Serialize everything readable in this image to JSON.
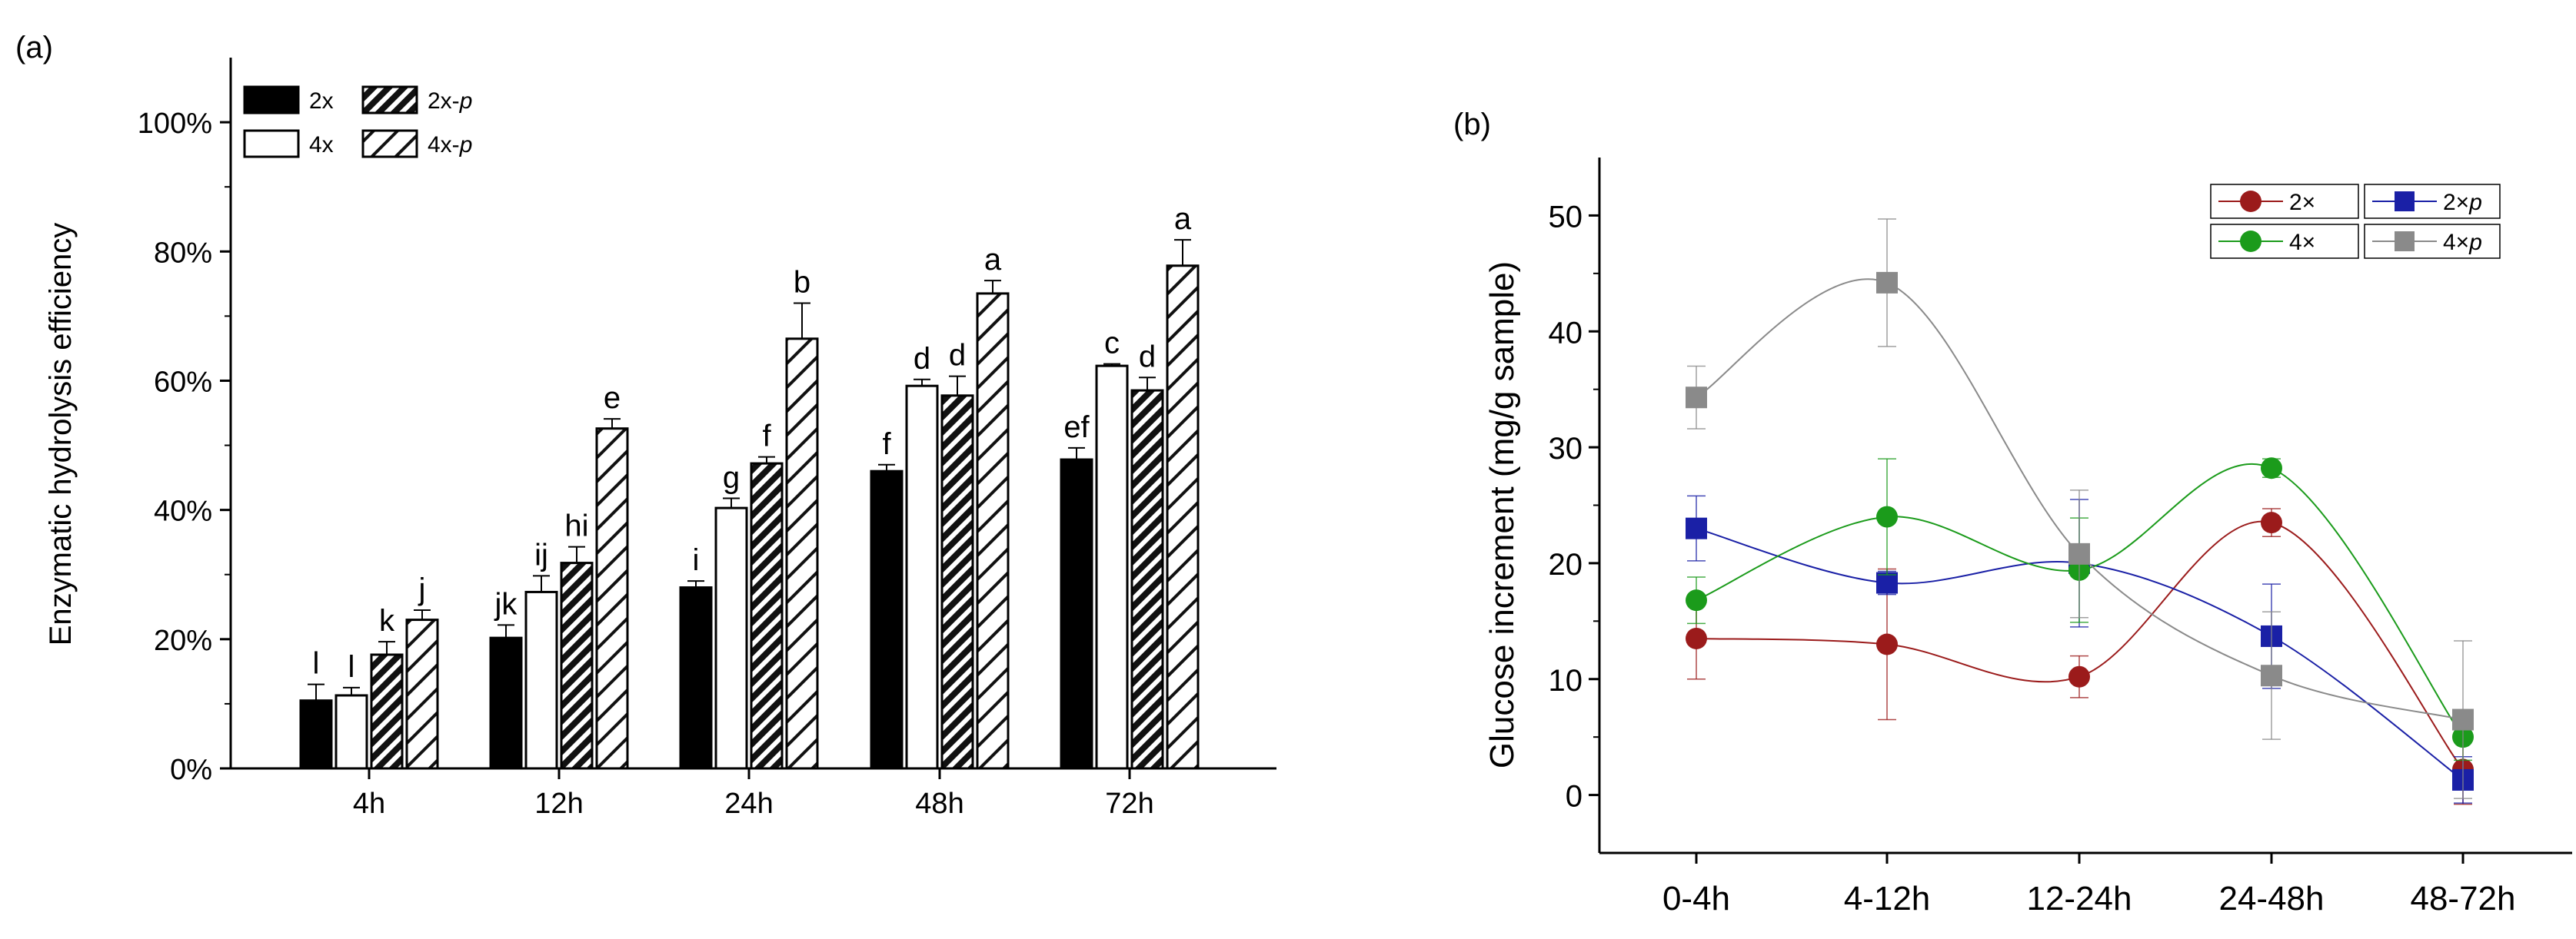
{
  "chart_data": [
    {
      "panel_label": "(a)",
      "type": "bar",
      "title": "",
      "xlabel": "",
      "ylabel": "Enzymatic hydrolysis efficiency",
      "ylim": [
        0,
        110
      ],
      "ytick_values": [
        0,
        20,
        40,
        60,
        80,
        100
      ],
      "ytick_labels": [
        "0%",
        "20%",
        "40%",
        "60%",
        "80%",
        "100%"
      ],
      "categories": [
        "4h",
        "12h",
        "24h",
        "48h",
        "72h"
      ],
      "legend_position": "top-left",
      "series": [
        {
          "name": "2x",
          "legend_label": "2x",
          "fill": "solid",
          "values": [
            10.5,
            20.2,
            28.0,
            46.0,
            47.8
          ],
          "errors": [
            2.5,
            2.0,
            1.0,
            1.0,
            1.8
          ],
          "letters": [
            "l",
            "jk",
            "i",
            "f",
            "ef"
          ]
        },
        {
          "name": "4x",
          "legend_label": "4x",
          "fill": "white",
          "values": [
            11.3,
            27.3,
            40.3,
            59.2,
            62.3
          ],
          "errors": [
            1.2,
            2.5,
            1.5,
            1.0,
            0.3
          ],
          "letters": [
            "l",
            "ij",
            "g",
            "d",
            "c"
          ]
        },
        {
          "name": "2x-p",
          "legend_label": "2x-p",
          "fill": "dense-hatch",
          "values": [
            17.6,
            31.8,
            47.2,
            57.7,
            58.5
          ],
          "errors": [
            2.0,
            2.5,
            1.0,
            3.0,
            2.0
          ],
          "letters": [
            "k",
            "hi",
            "f",
            "d",
            "d"
          ]
        },
        {
          "name": "4x-p",
          "legend_label": "4x-p",
          "fill": "sparse-hatch",
          "values": [
            23.0,
            52.6,
            66.5,
            73.5,
            77.8
          ],
          "errors": [
            1.5,
            1.5,
            5.5,
            2.0,
            4.0
          ],
          "letters": [
            "j",
            "e",
            "b",
            "a",
            "a"
          ]
        }
      ]
    },
    {
      "panel_label": "(b)",
      "type": "line",
      "title": "",
      "xlabel": "",
      "ylabel": "Glucose increment (mg/g sample)",
      "ylim": [
        -5,
        55
      ],
      "ytick_values": [
        0,
        10,
        20,
        30,
        40,
        50
      ],
      "ytick_labels": [
        "0",
        "10",
        "20",
        "30",
        "40",
        "50"
      ],
      "categories": [
        "0-4h",
        "4-12h",
        "12-24h",
        "24-48h",
        "48-72h"
      ],
      "legend_position": "top-right",
      "series": [
        {
          "name": "2×",
          "legend_label": "2×",
          "color": "#9b1b1b",
          "marker": "circle",
          "values": [
            13.5,
            13.0,
            10.2,
            23.5,
            2.2
          ],
          "errors": [
            3.5,
            6.5,
            1.8,
            1.2,
            3.0
          ]
        },
        {
          "name": "2×p",
          "legend_label": "2×p",
          "color": "#1a20a6",
          "marker": "square",
          "values": [
            23.0,
            18.3,
            20.0,
            13.7,
            1.3
          ],
          "errors": [
            2.8,
            1.0,
            5.5,
            4.5,
            2.0
          ]
        },
        {
          "name": "4×",
          "legend_label": "4×",
          "color": "#1b9b1b",
          "marker": "circle",
          "values": [
            16.8,
            24.0,
            19.4,
            28.2,
            5.0
          ],
          "errors": [
            2.0,
            5.0,
            4.5,
            0.8,
            2.0
          ]
        },
        {
          "name": "4×p",
          "legend_label": "4×p",
          "color": "#8a8a8a",
          "marker": "square",
          "values": [
            34.3,
            44.2,
            20.8,
            10.3,
            6.5
          ],
          "errors": [
            2.7,
            5.5,
            5.5,
            5.5,
            6.8
          ]
        }
      ]
    }
  ]
}
